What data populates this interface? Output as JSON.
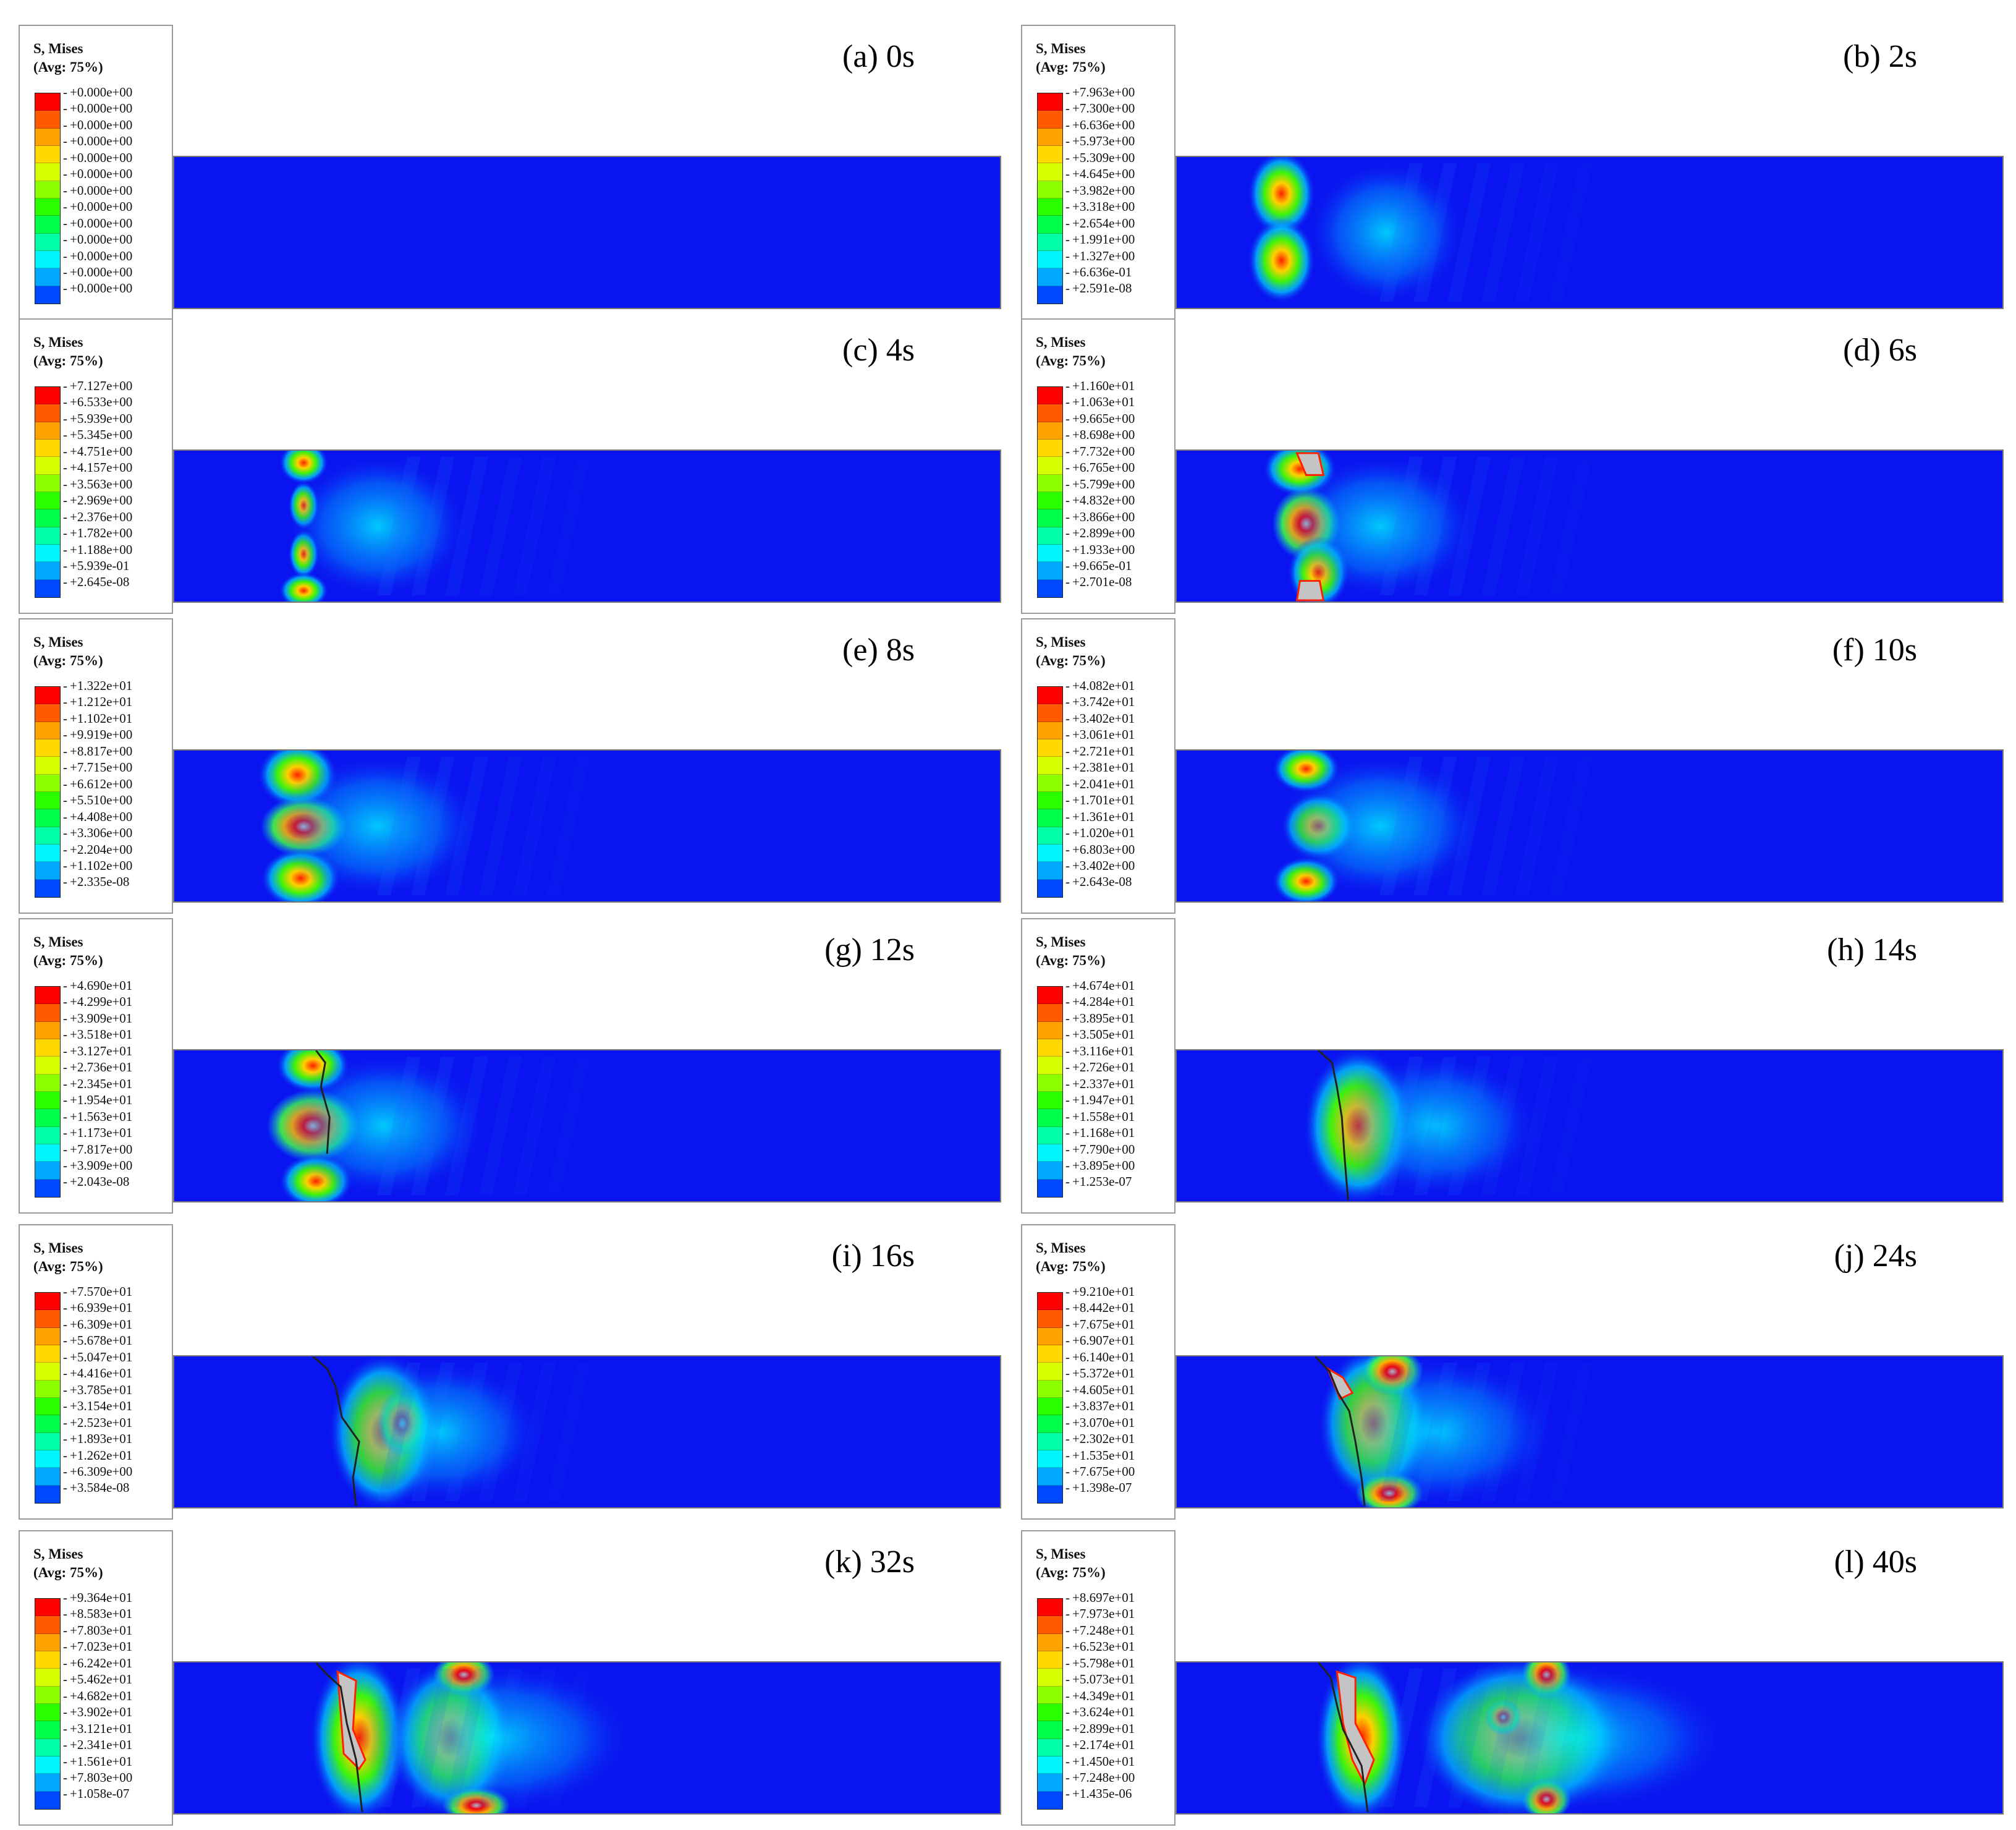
{
  "legend_title": [
    "S, Mises",
    "(Avg: 75%)"
  ],
  "colors": [
    "#ff0000",
    "#ff5a00",
    "#ffa200",
    "#ffd800",
    "#d8ff00",
    "#8cff00",
    "#2aff00",
    "#00ff4a",
    "#00ffa6",
    "#00f6ff",
    "#00a8ff",
    "#0048ff",
    "#0000ff"
  ],
  "panels": [
    {
      "label": "(a) 0s",
      "ticks": [
        "+0.000e+00",
        "+0.000e+00",
        "+0.000e+00",
        "+0.000e+00",
        "+0.000e+00",
        "+0.000e+00",
        "+0.000e+00",
        "+0.000e+00",
        "+0.000e+00",
        "+0.000e+00",
        "+0.000e+00",
        "+0.000e+00",
        "+0.000e+00"
      ]
    },
    {
      "label": "(b) 2s",
      "ticks": [
        "+7.963e+00",
        "+7.300e+00",
        "+6.636e+00",
        "+5.973e+00",
        "+5.309e+00",
        "+4.645e+00",
        "+3.982e+00",
        "+3.318e+00",
        "+2.654e+00",
        "+1.991e+00",
        "+1.327e+00",
        "+6.636e-01",
        "+2.591e-08"
      ]
    },
    {
      "label": "(c) 4s",
      "ticks": [
        "+7.127e+00",
        "+6.533e+00",
        "+5.939e+00",
        "+5.345e+00",
        "+4.751e+00",
        "+4.157e+00",
        "+3.563e+00",
        "+2.969e+00",
        "+2.376e+00",
        "+1.782e+00",
        "+1.188e+00",
        "+5.939e-01",
        "+2.645e-08"
      ]
    },
    {
      "label": "(d) 6s",
      "ticks": [
        "+1.160e+01",
        "+1.063e+01",
        "+9.665e+00",
        "+8.698e+00",
        "+7.732e+00",
        "+6.765e+00",
        "+5.799e+00",
        "+4.832e+00",
        "+3.866e+00",
        "+2.899e+00",
        "+1.933e+00",
        "+9.665e-01",
        "+2.701e-08"
      ]
    },
    {
      "label": "(e) 8s",
      "ticks": [
        "+1.322e+01",
        "+1.212e+01",
        "+1.102e+01",
        "+9.919e+00",
        "+8.817e+00",
        "+7.715e+00",
        "+6.612e+00",
        "+5.510e+00",
        "+4.408e+00",
        "+3.306e+00",
        "+2.204e+00",
        "+1.102e+00",
        "+2.335e-08"
      ]
    },
    {
      "label": "(f) 10s",
      "ticks": [
        "+4.082e+01",
        "+3.742e+01",
        "+3.402e+01",
        "+3.061e+01",
        "+2.721e+01",
        "+2.381e+01",
        "+2.041e+01",
        "+1.701e+01",
        "+1.361e+01",
        "+1.020e+01",
        "+6.803e+00",
        "+3.402e+00",
        "+2.643e-08"
      ]
    },
    {
      "label": "(g) 12s",
      "ticks": [
        "+4.690e+01",
        "+4.299e+01",
        "+3.909e+01",
        "+3.518e+01",
        "+3.127e+01",
        "+2.736e+01",
        "+2.345e+01",
        "+1.954e+01",
        "+1.563e+01",
        "+1.173e+01",
        "+7.817e+00",
        "+3.909e+00",
        "+2.043e-08"
      ]
    },
    {
      "label": "(h) 14s",
      "ticks": [
        "+4.674e+01",
        "+4.284e+01",
        "+3.895e+01",
        "+3.505e+01",
        "+3.116e+01",
        "+2.726e+01",
        "+2.337e+01",
        "+1.947e+01",
        "+1.558e+01",
        "+1.168e+01",
        "+7.790e+00",
        "+3.895e+00",
        "+1.253e-07"
      ]
    },
    {
      "label": "(i) 16s",
      "ticks": [
        "+7.570e+01",
        "+6.939e+01",
        "+6.309e+01",
        "+5.678e+01",
        "+5.047e+01",
        "+4.416e+01",
        "+3.785e+01",
        "+3.154e+01",
        "+2.523e+01",
        "+1.893e+01",
        "+1.262e+01",
        "+6.309e+00",
        "+3.584e-08"
      ]
    },
    {
      "label": "(j) 24s",
      "ticks": [
        "+9.210e+01",
        "+8.442e+01",
        "+7.675e+01",
        "+6.907e+01",
        "+6.140e+01",
        "+5.372e+01",
        "+4.605e+01",
        "+3.837e+01",
        "+3.070e+01",
        "+2.302e+01",
        "+1.535e+01",
        "+7.675e+00",
        "+1.398e-07"
      ]
    },
    {
      "label": "(k) 32s",
      "ticks": [
        "+9.364e+01",
        "+8.583e+01",
        "+7.803e+01",
        "+7.023e+01",
        "+6.242e+01",
        "+5.462e+01",
        "+4.682e+01",
        "+3.902e+01",
        "+3.121e+01",
        "+2.341e+01",
        "+1.561e+01",
        "+7.803e+00",
        "+1.058e-07"
      ]
    },
    {
      "label": "(l) 40s",
      "ticks": [
        "+8.697e+01",
        "+7.973e+01",
        "+7.248e+01",
        "+6.523e+01",
        "+5.798e+01",
        "+5.073e+01",
        "+4.349e+01",
        "+3.624e+01",
        "+2.899e+01",
        "+2.174e+01",
        "+1.450e+01",
        "+7.248e+00",
        "+1.435e-06"
      ]
    }
  ]
}
